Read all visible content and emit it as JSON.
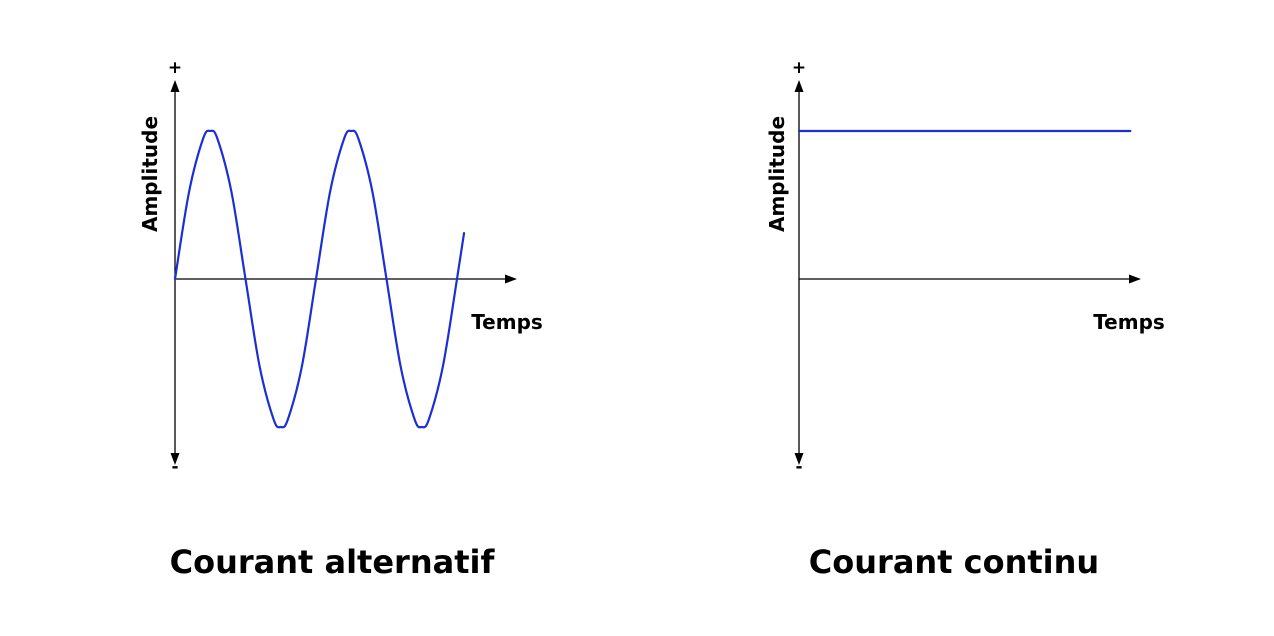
{
  "chart_data": [
    {
      "type": "line",
      "title": "Courant alternatif",
      "xlabel": "Temps",
      "ylabel": "Amplitude",
      "y_max_label": "+",
      "y_min_label": "-",
      "ylim": [
        -1.2,
        1.2
      ],
      "xlim": [
        0,
        2.4
      ],
      "grid": false,
      "color": "#1a2fd6",
      "series": [
        {
          "x": [
            0,
            0.1,
            0.2,
            0.25,
            0.3,
            0.4,
            0.5,
            0.6,
            0.7,
            0.75,
            0.8,
            0.9,
            1.0,
            1.1,
            1.2,
            1.25,
            1.3,
            1.4,
            1.5,
            1.6,
            1.7,
            1.75,
            1.8,
            1.9,
            2.0,
            2.05
          ],
          "y": [
            0,
            0.59,
            0.95,
            1.0,
            0.95,
            0.59,
            0,
            -0.59,
            -0.95,
            -1.0,
            -0.95,
            -0.59,
            0,
            0.59,
            0.95,
            1.0,
            0.95,
            0.59,
            0,
            -0.59,
            -0.95,
            -1.0,
            -0.95,
            -0.59,
            0,
            0.31
          ]
        }
      ]
    },
    {
      "type": "line",
      "title": "Courant continu",
      "xlabel": "Temps",
      "ylabel": "Amplitude",
      "y_max_label": "+",
      "y_min_label": "-",
      "ylim": [
        -1.2,
        1.2
      ],
      "xlim": [
        0,
        2.4
      ],
      "grid": false,
      "color": "#1a2fd6",
      "series": [
        {
          "x": [
            0,
            2.35
          ],
          "y": [
            1.0,
            1.0
          ]
        }
      ]
    }
  ]
}
